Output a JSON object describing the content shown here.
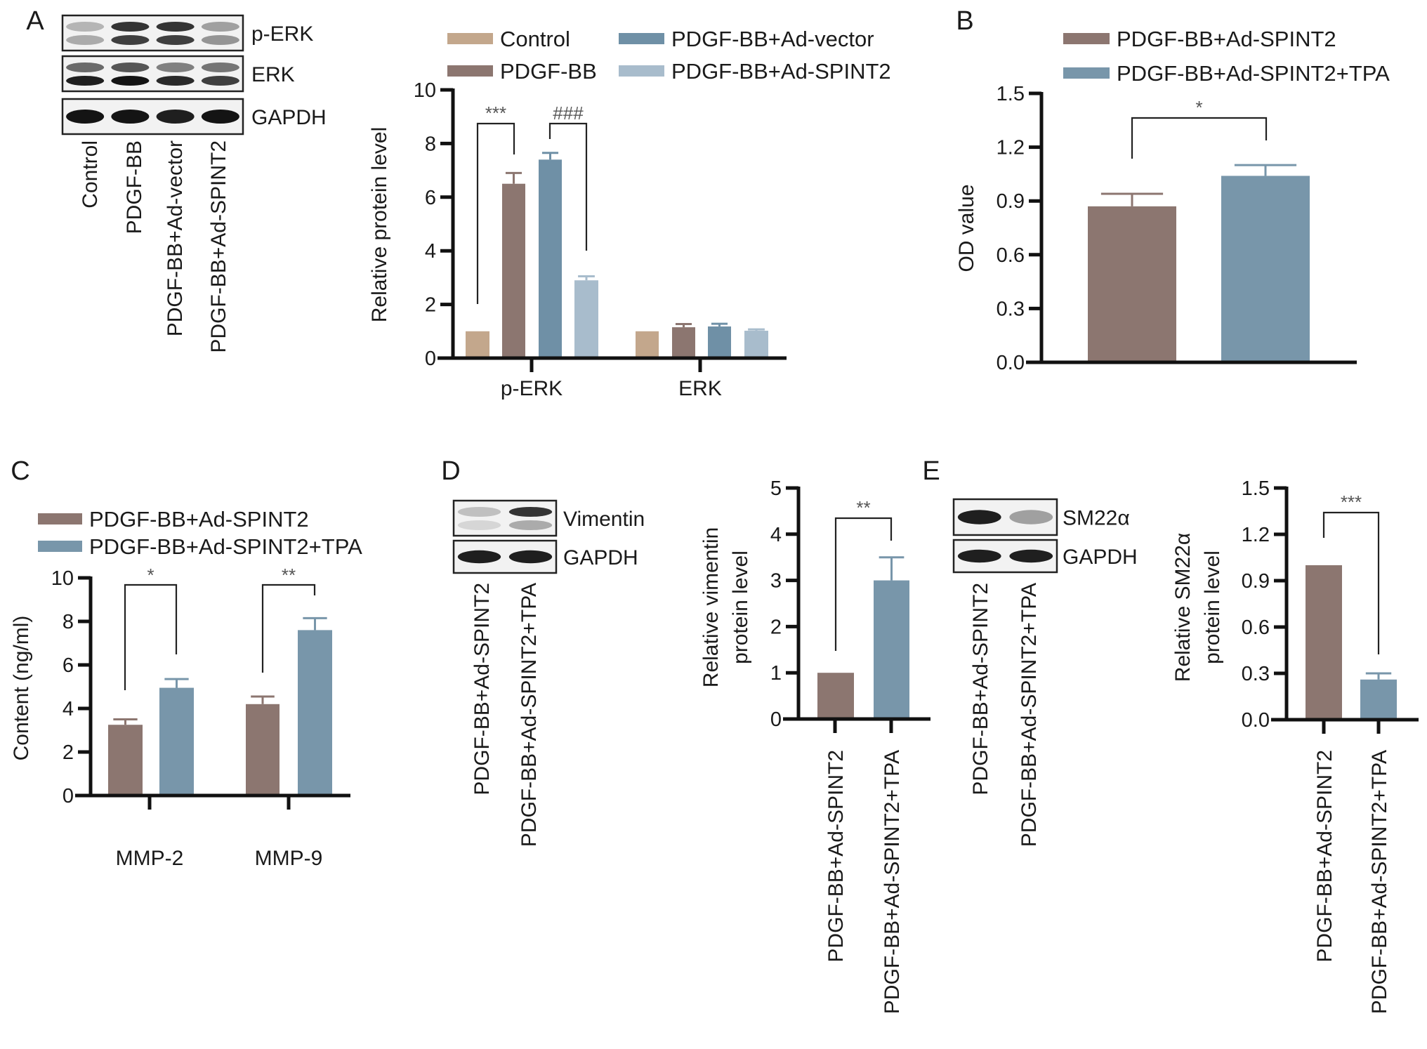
{
  "panels": [
    "A",
    "B",
    "C",
    "D",
    "E"
  ],
  "colors": {
    "control": "#c3a78c",
    "pdgf_bb": "#8c7670",
    "ad_vector": "#6f90a6",
    "ad_spint2": "#a8bccc",
    "spint2": "#8c7670",
    "spint2_tpa": "#7896aa"
  },
  "blots": {
    "A": {
      "rows": [
        "p-ERK",
        "ERK",
        "GAPDH"
      ],
      "lanes": [
        "Control",
        "PDGF-BB",
        "PDGF-BB+Ad-vector",
        "PDGF-BB+Ad-SPINT2"
      ]
    },
    "D": {
      "rows": [
        "Vimentin",
        "GAPDH"
      ],
      "lanes": [
        "PDGF-BB+Ad-SPINT2",
        "PDGF-BB+Ad-SPINT2+TPA"
      ]
    },
    "E": {
      "rows": [
        "SM22α",
        "GAPDH"
      ],
      "lanes": [
        "PDGF-BB+Ad-SPINT2",
        "PDGF-BB+Ad-SPINT2+TPA"
      ]
    }
  },
  "chart_data": [
    {
      "panel": "A",
      "type": "bar",
      "ylabel": [
        "Relative protein level"
      ],
      "ylim": [
        0,
        10
      ],
      "yticks": [
        "0",
        "2",
        "4",
        "6",
        "8",
        "10"
      ],
      "categories": [
        "p-ERK",
        "ERK"
      ],
      "legend": "top",
      "series": [
        {
          "name": "Control",
          "color": "#c3a78c",
          "values": [
            1.0,
            1.0
          ],
          "errors": [
            0,
            0
          ]
        },
        {
          "name": "PDGF-BB",
          "color": "#8c7670",
          "values": [
            6.5,
            1.15
          ],
          "errors": [
            0.4,
            0.12
          ]
        },
        {
          "name": "PDGF-BB+Ad-vector",
          "color": "#6f90a6",
          "values": [
            7.4,
            1.18
          ],
          "errors": [
            0.25,
            0.1
          ]
        },
        {
          "name": "PDGF-BB+Ad-SPINT2",
          "color": "#a8bccc",
          "values": [
            2.9,
            1.02
          ],
          "errors": [
            0.15,
            0.05
          ]
        }
      ],
      "significance": [
        {
          "label": "***",
          "category": "p-ERK",
          "between": [
            "Control",
            "PDGF-BB"
          ]
        },
        {
          "label": "###",
          "category": "p-ERK",
          "between": [
            "PDGF-BB+Ad-vector",
            "PDGF-BB+Ad-SPINT2"
          ]
        }
      ]
    },
    {
      "panel": "B",
      "type": "bar",
      "ylabel": [
        "OD value"
      ],
      "ylim": [
        0,
        1.5
      ],
      "yticks": [
        "0.0",
        "0.3",
        "0.6",
        "0.9",
        "1.2",
        "1.5"
      ],
      "legend": "top",
      "bars": [
        {
          "name": "PDGF-BB+Ad-SPINT2",
          "color": "#8c7670",
          "value": 0.87,
          "error": 0.07
        },
        {
          "name": "PDGF-BB+Ad-SPINT2+TPA",
          "color": "#7896aa",
          "value": 1.04,
          "error": 0.06
        }
      ],
      "significance": [
        {
          "label": "*",
          "between": [
            "PDGF-BB+Ad-SPINT2",
            "PDGF-BB+Ad-SPINT2+TPA"
          ]
        }
      ]
    },
    {
      "panel": "C",
      "type": "bar",
      "ylabel": [
        "Content (ng/ml)"
      ],
      "ylim": [
        0,
        10
      ],
      "yticks": [
        "0",
        "2",
        "4",
        "6",
        "8",
        "10"
      ],
      "categories": [
        "MMP-2",
        "MMP-9"
      ],
      "legend": "top",
      "series": [
        {
          "name": "PDGF-BB+Ad-SPINT2",
          "color": "#8c7670",
          "values": [
            3.25,
            4.2
          ],
          "errors": [
            0.25,
            0.35
          ]
        },
        {
          "name": "PDGF-BB+Ad-SPINT2+TPA",
          "color": "#7896aa",
          "values": [
            4.95,
            7.6
          ],
          "errors": [
            0.4,
            0.55
          ]
        }
      ],
      "significance": [
        {
          "label": "*",
          "category": "MMP-2",
          "between": [
            "PDGF-BB+Ad-SPINT2",
            "PDGF-BB+Ad-SPINT2+TPA"
          ]
        },
        {
          "label": "**",
          "category": "MMP-9",
          "between": [
            "PDGF-BB+Ad-SPINT2",
            "PDGF-BB+Ad-SPINT2+TPA"
          ]
        }
      ]
    },
    {
      "panel": "D",
      "type": "bar",
      "ylabel": [
        "Relative vimentin",
        "protein level"
      ],
      "ylim": [
        0,
        5
      ],
      "yticks": [
        "0",
        "1",
        "2",
        "3",
        "4",
        "5"
      ],
      "bars": [
        {
          "name": "PDGF-BB+Ad-SPINT2",
          "color": "#8c7670",
          "value": 1.0,
          "error": 0
        },
        {
          "name": "PDGF-BB+Ad-SPINT2+TPA",
          "color": "#7896aa",
          "value": 3.0,
          "error": 0.5
        }
      ],
      "significance": [
        {
          "label": "**",
          "between": [
            "PDGF-BB+Ad-SPINT2",
            "PDGF-BB+Ad-SPINT2+TPA"
          ]
        }
      ]
    },
    {
      "panel": "E",
      "type": "bar",
      "ylabel": [
        "Relative SM22α",
        "protein level"
      ],
      "ylim": [
        0,
        1.5
      ],
      "yticks": [
        "0.0",
        "0.3",
        "0.6",
        "0.9",
        "1.2",
        "1.5"
      ],
      "bars": [
        {
          "name": "PDGF-BB+Ad-SPINT2",
          "color": "#8c7670",
          "value": 1.0,
          "error": 0
        },
        {
          "name": "PDGF-BB+Ad-SPINT2+TPA",
          "color": "#7896aa",
          "value": 0.26,
          "error": 0.04
        }
      ],
      "significance": [
        {
          "label": "***",
          "between": [
            "PDGF-BB+Ad-SPINT2",
            "PDGF-BB+Ad-SPINT2+TPA"
          ]
        }
      ]
    }
  ]
}
